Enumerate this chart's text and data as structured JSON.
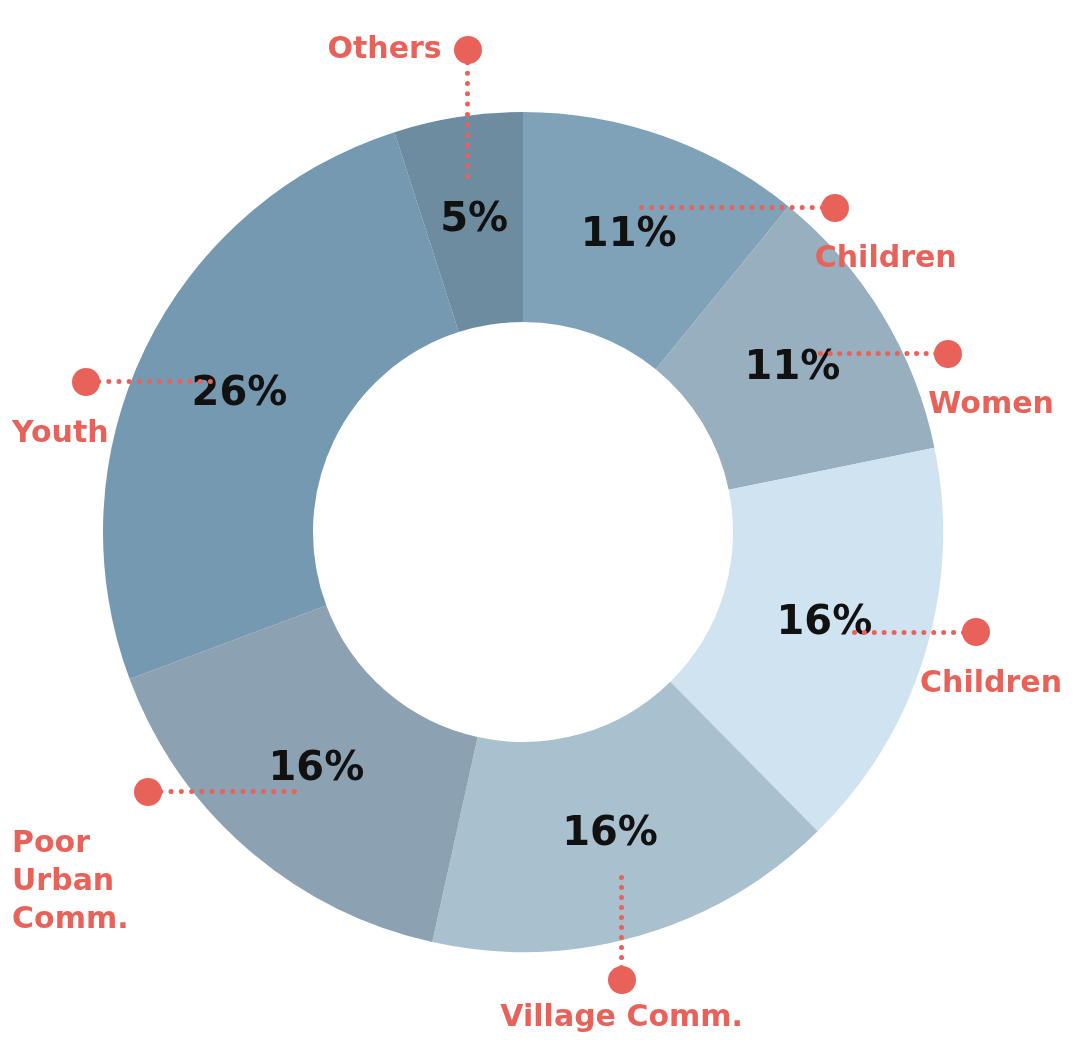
{
  "chart_data": {
    "type": "donut",
    "categories": [
      "Children",
      "Women",
      "Children",
      "Village Comm.",
      "Poor Urban Comm.",
      "Youth",
      "Others"
    ],
    "values": [
      11,
      11,
      16,
      16,
      16,
      26,
      5
    ],
    "value_labels": [
      "11%",
      "11%",
      "16%",
      "16%",
      "16%",
      "26%",
      "5%"
    ],
    "colors": [
      "#7fa2b8",
      "#97afbe",
      "#cfe3f0",
      "#a9c0ce",
      "#8ca2b2",
      "#7599b1",
      "#6e8c9f"
    ],
    "legend": false
  }
}
